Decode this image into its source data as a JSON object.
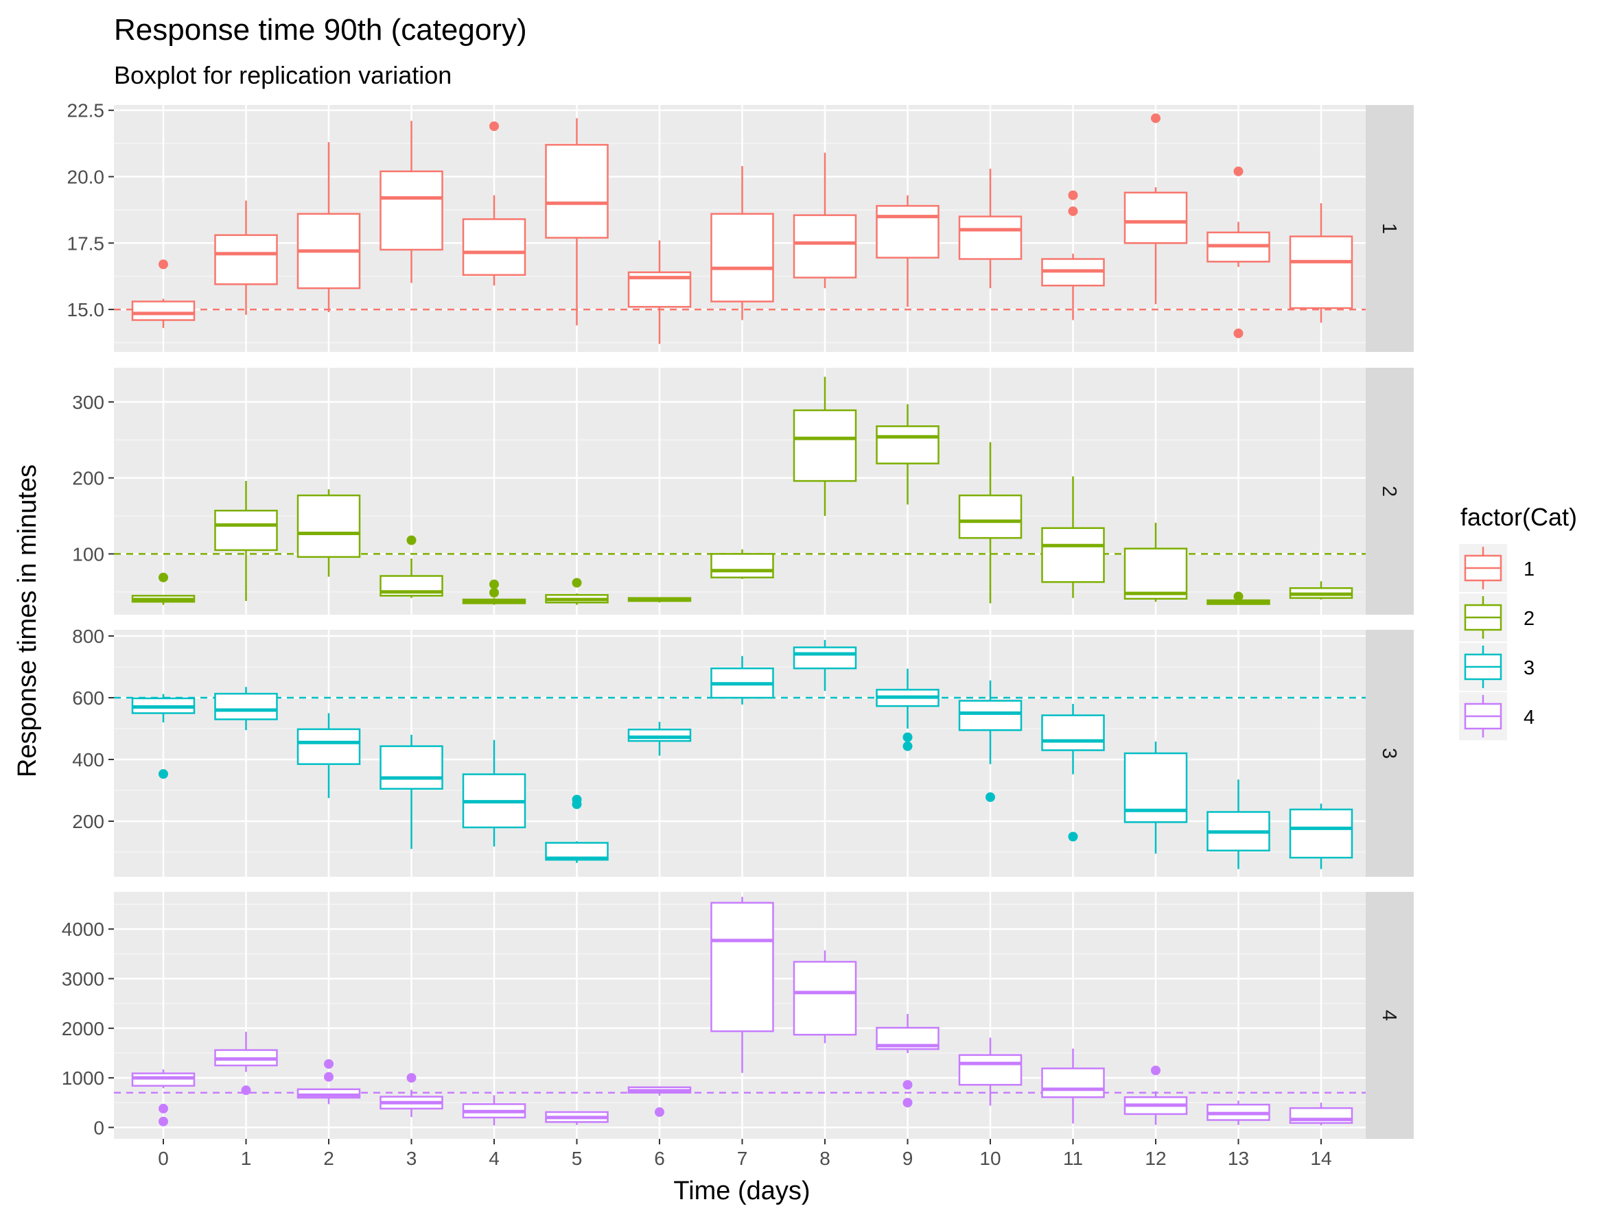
{
  "chart_data": {
    "type": "boxplot",
    "title": "Response time 90th (category)",
    "subtitle": "Boxplot for replication variation",
    "xlabel": "Time (days)",
    "ylabel": "Response times in minutes",
    "x_categories": [
      "0",
      "1",
      "2",
      "3",
      "4",
      "5",
      "6",
      "7",
      "8",
      "9",
      "10",
      "11",
      "12",
      "13",
      "14"
    ],
    "legend": {
      "title": "factor(Cat)",
      "placement": "right",
      "items": [
        {
          "label": "1",
          "color": "#F8766D"
        },
        {
          "label": "2",
          "color": "#7CAE00"
        },
        {
          "label": "3",
          "color": "#00BFC4"
        },
        {
          "label": "4",
          "color": "#C77CFF"
        }
      ]
    },
    "grid": true,
    "facets": [
      {
        "strip": "1",
        "color": "#F8766D",
        "ylim": [
          13.4,
          22.7
        ],
        "yticks": [
          15.0,
          17.5,
          20.0,
          22.5
        ],
        "ytick_labels": [
          "15.0",
          "17.5",
          "20.0",
          "22.5"
        ],
        "reference_line": 15,
        "boxes": [
          {
            "x": 0,
            "lo": 14.3,
            "q1": 14.6,
            "med": 14.85,
            "q3": 15.3,
            "hi": 15.4,
            "out": [
              16.7
            ]
          },
          {
            "x": 1,
            "lo": 14.8,
            "q1": 15.95,
            "med": 17.1,
            "q3": 17.8,
            "hi": 19.1,
            "out": []
          },
          {
            "x": 2,
            "lo": 14.9,
            "q1": 15.8,
            "med": 17.2,
            "q3": 18.6,
            "hi": 21.3,
            "out": []
          },
          {
            "x": 3,
            "lo": 16.0,
            "q1": 17.25,
            "med": 19.2,
            "q3": 20.2,
            "hi": 22.1,
            "out": []
          },
          {
            "x": 4,
            "lo": 15.9,
            "q1": 16.3,
            "med": 17.15,
            "q3": 18.4,
            "hi": 19.3,
            "out": [
              21.9
            ]
          },
          {
            "x": 5,
            "lo": 14.4,
            "q1": 17.7,
            "med": 19.0,
            "q3": 21.2,
            "hi": 22.2,
            "out": []
          },
          {
            "x": 6,
            "lo": 13.7,
            "q1": 15.1,
            "med": 16.2,
            "q3": 16.4,
            "hi": 17.6,
            "out": []
          },
          {
            "x": 7,
            "lo": 14.6,
            "q1": 15.3,
            "med": 16.55,
            "q3": 18.6,
            "hi": 20.4,
            "out": []
          },
          {
            "x": 8,
            "lo": 15.8,
            "q1": 16.2,
            "med": 17.5,
            "q3": 18.55,
            "hi": 20.9,
            "out": []
          },
          {
            "x": 9,
            "lo": 15.1,
            "q1": 16.95,
            "med": 18.5,
            "q3": 18.9,
            "hi": 19.3,
            "out": []
          },
          {
            "x": 10,
            "lo": 15.8,
            "q1": 16.9,
            "med": 18.0,
            "q3": 18.5,
            "hi": 20.3,
            "out": []
          },
          {
            "x": 11,
            "lo": 14.6,
            "q1": 15.9,
            "med": 16.45,
            "q3": 16.9,
            "hi": 17.1,
            "out": [
              18.7,
              19.3
            ]
          },
          {
            "x": 12,
            "lo": 15.2,
            "q1": 17.5,
            "med": 18.3,
            "q3": 19.4,
            "hi": 19.6,
            "out": [
              22.2
            ]
          },
          {
            "x": 13,
            "lo": 16.6,
            "q1": 16.8,
            "med": 17.4,
            "q3": 17.9,
            "hi": 18.3,
            "out": [
              14.1,
              20.2
            ]
          },
          {
            "x": 14,
            "lo": 14.5,
            "q1": 15.05,
            "med": 16.8,
            "q3": 17.75,
            "hi": 19.0,
            "out": []
          }
        ]
      },
      {
        "strip": "2",
        "color": "#7CAE00",
        "ylim": [
          20,
          345
        ],
        "yticks": [
          100,
          200,
          300
        ],
        "ytick_labels": [
          "100",
          "200",
          "300"
        ],
        "reference_line": 100,
        "boxes": [
          {
            "x": 0,
            "lo": 33,
            "q1": 37,
            "med": 40,
            "q3": 45,
            "hi": 46,
            "out": [
              69
            ]
          },
          {
            "x": 1,
            "lo": 38,
            "q1": 105,
            "med": 138,
            "q3": 157,
            "hi": 196,
            "out": []
          },
          {
            "x": 2,
            "lo": 70,
            "q1": 96,
            "med": 127,
            "q3": 177,
            "hi": 185,
            "out": []
          },
          {
            "x": 3,
            "lo": 42,
            "q1": 45,
            "med": 50,
            "q3": 71,
            "hi": 94,
            "out": [
              118
            ]
          },
          {
            "x": 4,
            "lo": 33,
            "q1": 35,
            "med": 37,
            "q3": 40,
            "hi": 42,
            "out": [
              49,
              60
            ]
          },
          {
            "x": 5,
            "lo": 33,
            "q1": 36,
            "med": 40,
            "q3": 46,
            "hi": 48,
            "out": [
              62
            ]
          },
          {
            "x": 6,
            "lo": 36,
            "q1": 38,
            "med": 40,
            "q3": 42,
            "hi": 43,
            "out": []
          },
          {
            "x": 7,
            "lo": 67,
            "q1": 69,
            "med": 78,
            "q3": 100,
            "hi": 106,
            "out": []
          },
          {
            "x": 8,
            "lo": 150,
            "q1": 196,
            "med": 252,
            "q3": 289,
            "hi": 333,
            "out": []
          },
          {
            "x": 9,
            "lo": 165,
            "q1": 219,
            "med": 254,
            "q3": 268,
            "hi": 297,
            "out": []
          },
          {
            "x": 10,
            "lo": 35,
            "q1": 121,
            "med": 143,
            "q3": 177,
            "hi": 247,
            "out": []
          },
          {
            "x": 11,
            "lo": 42,
            "q1": 63,
            "med": 111,
            "q3": 134,
            "hi": 202,
            "out": []
          },
          {
            "x": 12,
            "lo": 37,
            "q1": 41,
            "med": 48,
            "q3": 107,
            "hi": 141,
            "out": []
          },
          {
            "x": 13,
            "lo": 33,
            "q1": 34,
            "med": 36,
            "q3": 39,
            "hi": 40,
            "out": [
              44
            ]
          },
          {
            "x": 14,
            "lo": 40,
            "q1": 42,
            "med": 47,
            "q3": 55,
            "hi": 64,
            "out": []
          }
        ]
      },
      {
        "strip": "3",
        "color": "#00BFC4",
        "ylim": [
          20,
          820
        ],
        "yticks": [
          200,
          400,
          600,
          800
        ],
        "ytick_labels": [
          "200",
          "400",
          "600",
          "800"
        ],
        "reference_line": 600,
        "boxes": [
          {
            "x": 0,
            "lo": 520,
            "q1": 550,
            "med": 570,
            "q3": 598,
            "hi": 612,
            "out": [
              353
            ]
          },
          {
            "x": 1,
            "lo": 495,
            "q1": 530,
            "med": 560,
            "q3": 613,
            "hi": 635,
            "out": []
          },
          {
            "x": 2,
            "lo": 275,
            "q1": 385,
            "med": 455,
            "q3": 498,
            "hi": 550,
            "out": []
          },
          {
            "x": 3,
            "lo": 110,
            "q1": 305,
            "med": 340,
            "q3": 443,
            "hi": 480,
            "out": []
          },
          {
            "x": 4,
            "lo": 118,
            "q1": 180,
            "med": 263,
            "q3": 352,
            "hi": 463,
            "out": []
          },
          {
            "x": 5,
            "lo": 65,
            "q1": 75,
            "med": 80,
            "q3": 130,
            "hi": 135,
            "out": [
              255,
              270
            ]
          },
          {
            "x": 6,
            "lo": 412,
            "q1": 460,
            "med": 472,
            "q3": 497,
            "hi": 522,
            "out": []
          },
          {
            "x": 7,
            "lo": 578,
            "q1": 600,
            "med": 645,
            "q3": 695,
            "hi": 735,
            "out": []
          },
          {
            "x": 8,
            "lo": 622,
            "q1": 695,
            "med": 742,
            "q3": 763,
            "hi": 787,
            "out": []
          },
          {
            "x": 9,
            "lo": 500,
            "q1": 573,
            "med": 602,
            "q3": 626,
            "hi": 694,
            "out": [
              443,
              472
            ]
          },
          {
            "x": 10,
            "lo": 385,
            "q1": 495,
            "med": 550,
            "q3": 590,
            "hi": 656,
            "out": [
              278
            ]
          },
          {
            "x": 11,
            "lo": 352,
            "q1": 430,
            "med": 460,
            "q3": 543,
            "hi": 580,
            "out": [
              150
            ]
          },
          {
            "x": 12,
            "lo": 95,
            "q1": 197,
            "med": 235,
            "q3": 420,
            "hi": 458,
            "out": []
          },
          {
            "x": 13,
            "lo": 45,
            "q1": 105,
            "med": 165,
            "q3": 230,
            "hi": 335,
            "out": []
          },
          {
            "x": 14,
            "lo": 45,
            "q1": 82,
            "med": 177,
            "q3": 238,
            "hi": 257,
            "out": []
          }
        ]
      },
      {
        "strip": "4",
        "color": "#C77CFF",
        "ylim": [
          -230,
          4750
        ],
        "yticks": [
          0,
          1000,
          2000,
          3000,
          4000
        ],
        "ytick_labels": [
          "0",
          "1000",
          "2000",
          "3000",
          "4000"
        ],
        "reference_line": 700,
        "boxes": [
          {
            "x": 0,
            "lo": 790,
            "q1": 840,
            "med": 1000,
            "q3": 1090,
            "hi": 1170,
            "out": [
              120,
              380
            ]
          },
          {
            "x": 1,
            "lo": 1120,
            "q1": 1250,
            "med": 1380,
            "q3": 1560,
            "hi": 1930,
            "out": [
              750
            ]
          },
          {
            "x": 2,
            "lo": 470,
            "q1": 600,
            "med": 650,
            "q3": 770,
            "hi": 780,
            "out": [
              1020,
              1280
            ]
          },
          {
            "x": 3,
            "lo": 210,
            "q1": 380,
            "med": 500,
            "q3": 620,
            "hi": 760,
            "out": [
              1000
            ]
          },
          {
            "x": 4,
            "lo": 40,
            "q1": 200,
            "med": 320,
            "q3": 470,
            "hi": 650,
            "out": []
          },
          {
            "x": 5,
            "lo": 50,
            "q1": 110,
            "med": 200,
            "q3": 310,
            "hi": 330,
            "out": []
          },
          {
            "x": 6,
            "lo": 640,
            "q1": 700,
            "med": 740,
            "q3": 810,
            "hi": 830,
            "out": [
              310
            ]
          },
          {
            "x": 7,
            "lo": 1100,
            "q1": 1940,
            "med": 3770,
            "q3": 4530,
            "hi": 4650,
            "out": []
          },
          {
            "x": 8,
            "lo": 1700,
            "q1": 1870,
            "med": 2720,
            "q3": 3340,
            "hi": 3570,
            "out": []
          },
          {
            "x": 9,
            "lo": 1500,
            "q1": 1580,
            "med": 1650,
            "q3": 2010,
            "hi": 2290,
            "out": [
              500,
              860
            ]
          },
          {
            "x": 10,
            "lo": 440,
            "q1": 860,
            "med": 1290,
            "q3": 1460,
            "hi": 1810,
            "out": []
          },
          {
            "x": 11,
            "lo": 80,
            "q1": 610,
            "med": 770,
            "q3": 1190,
            "hi": 1590,
            "out": []
          },
          {
            "x": 12,
            "lo": 50,
            "q1": 270,
            "med": 450,
            "q3": 610,
            "hi": 730,
            "out": [
              1150
            ]
          },
          {
            "x": 13,
            "lo": 50,
            "q1": 150,
            "med": 280,
            "q3": 460,
            "hi": 540,
            "out": []
          },
          {
            "x": 14,
            "lo": 40,
            "q1": 90,
            "med": 160,
            "q3": 390,
            "hi": 500,
            "out": []
          }
        ]
      }
    ]
  }
}
